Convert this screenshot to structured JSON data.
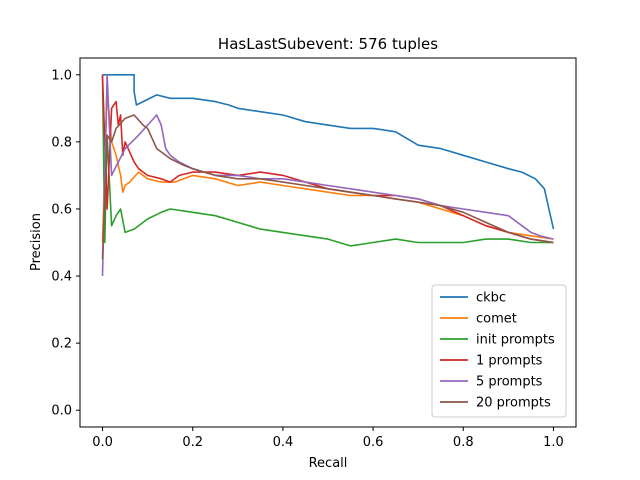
{
  "chart_data": {
    "type": "line",
    "title": "HasLastSubevent: 576 tuples",
    "xlabel": "Recall",
    "ylabel": "Precision",
    "xlim": [
      -0.05,
      1.05
    ],
    "ylim": [
      -0.05,
      1.05
    ],
    "xticks": [
      0.0,
      0.2,
      0.4,
      0.6,
      0.8,
      1.0
    ],
    "yticks": [
      0.0,
      0.2,
      0.4,
      0.6,
      0.8,
      1.0
    ],
    "xtick_labels": [
      "0.0",
      "0.2",
      "0.4",
      "0.6",
      "0.8",
      "1.0"
    ],
    "ytick_labels": [
      "0.0",
      "0.2",
      "0.4",
      "0.6",
      "0.8",
      "1.0"
    ],
    "grid": false,
    "legend_position": "lower right",
    "series": [
      {
        "name": "ckbc",
        "color": "#1f77b4",
        "x": [
          0.0,
          0.07,
          0.07,
          0.075,
          0.09,
          0.12,
          0.15,
          0.2,
          0.25,
          0.28,
          0.3,
          0.35,
          0.4,
          0.45,
          0.5,
          0.55,
          0.6,
          0.65,
          0.7,
          0.75,
          0.8,
          0.85,
          0.9,
          0.93,
          0.96,
          0.98,
          0.99,
          1.0
        ],
        "y": [
          1.0,
          1.0,
          0.95,
          0.91,
          0.92,
          0.94,
          0.93,
          0.93,
          0.92,
          0.91,
          0.9,
          0.89,
          0.88,
          0.86,
          0.85,
          0.84,
          0.84,
          0.83,
          0.79,
          0.78,
          0.76,
          0.74,
          0.72,
          0.71,
          0.69,
          0.66,
          0.6,
          0.54
        ]
      },
      {
        "name": "comet",
        "color": "#ff7f0e",
        "x": [
          0.0,
          0.01,
          0.02,
          0.03,
          0.04,
          0.045,
          0.05,
          0.06,
          0.08,
          0.1,
          0.13,
          0.16,
          0.2,
          0.25,
          0.3,
          0.35,
          0.4,
          0.45,
          0.5,
          0.55,
          0.6,
          0.65,
          0.7,
          0.75,
          0.8,
          0.85,
          0.9,
          0.95,
          1.0
        ],
        "y": [
          0.5,
          0.95,
          0.8,
          0.76,
          0.7,
          0.65,
          0.67,
          0.68,
          0.71,
          0.69,
          0.68,
          0.68,
          0.7,
          0.69,
          0.67,
          0.68,
          0.67,
          0.66,
          0.65,
          0.64,
          0.64,
          0.63,
          0.62,
          0.6,
          0.58,
          0.55,
          0.53,
          0.52,
          0.51
        ]
      },
      {
        "name": "init prompts",
        "color": "#2ca02c",
        "x": [
          0.0,
          0.005,
          0.01,
          0.02,
          0.03,
          0.04,
          0.05,
          0.07,
          0.1,
          0.13,
          0.15,
          0.2,
          0.25,
          0.3,
          0.35,
          0.4,
          0.45,
          0.5,
          0.55,
          0.6,
          0.65,
          0.7,
          0.75,
          0.8,
          0.85,
          0.9,
          0.95,
          1.0
        ],
        "y": [
          1.0,
          0.5,
          0.82,
          0.55,
          0.58,
          0.6,
          0.53,
          0.54,
          0.57,
          0.59,
          0.6,
          0.59,
          0.58,
          0.56,
          0.54,
          0.53,
          0.52,
          0.51,
          0.49,
          0.5,
          0.51,
          0.5,
          0.5,
          0.5,
          0.51,
          0.51,
          0.5,
          0.5
        ]
      },
      {
        "name": "1 prompts",
        "color": "#d62728",
        "x": [
          0.0,
          0.01,
          0.02,
          0.03,
          0.035,
          0.04,
          0.045,
          0.05,
          0.06,
          0.07,
          0.08,
          0.09,
          0.1,
          0.13,
          0.15,
          0.17,
          0.2,
          0.25,
          0.3,
          0.35,
          0.4,
          0.45,
          0.5,
          0.55,
          0.6,
          0.65,
          0.7,
          0.75,
          0.8,
          0.85,
          0.9,
          0.95,
          1.0
        ],
        "y": [
          1.0,
          0.6,
          0.9,
          0.92,
          0.85,
          0.88,
          0.76,
          0.8,
          0.77,
          0.74,
          0.72,
          0.71,
          0.7,
          0.69,
          0.68,
          0.7,
          0.71,
          0.71,
          0.7,
          0.71,
          0.7,
          0.68,
          0.66,
          0.65,
          0.64,
          0.64,
          0.63,
          0.61,
          0.58,
          0.55,
          0.53,
          0.51,
          0.5
        ]
      },
      {
        "name": "5 prompts",
        "color": "#9467bd",
        "x": [
          0.0,
          0.01,
          0.015,
          0.02,
          0.05,
          0.08,
          0.1,
          0.12,
          0.13,
          0.14,
          0.15,
          0.17,
          0.2,
          0.25,
          0.3,
          0.35,
          0.4,
          0.45,
          0.5,
          0.55,
          0.6,
          0.65,
          0.7,
          0.75,
          0.8,
          0.85,
          0.9,
          0.93,
          0.95,
          0.97,
          1.0
        ],
        "y": [
          0.4,
          1.0,
          0.85,
          0.7,
          0.78,
          0.82,
          0.85,
          0.88,
          0.85,
          0.78,
          0.76,
          0.74,
          0.72,
          0.7,
          0.7,
          0.69,
          0.69,
          0.68,
          0.67,
          0.66,
          0.65,
          0.64,
          0.63,
          0.61,
          0.6,
          0.59,
          0.58,
          0.55,
          0.53,
          0.52,
          0.51
        ]
      },
      {
        "name": "20 prompts",
        "color": "#8c564b",
        "x": [
          0.0,
          0.01,
          0.02,
          0.03,
          0.05,
          0.07,
          0.09,
          0.1,
          0.12,
          0.13,
          0.15,
          0.18,
          0.2,
          0.25,
          0.3,
          0.35,
          0.4,
          0.45,
          0.5,
          0.55,
          0.6,
          0.65,
          0.7,
          0.75,
          0.8,
          0.85,
          0.9,
          0.95,
          1.0
        ],
        "y": [
          0.45,
          0.82,
          0.8,
          0.84,
          0.87,
          0.88,
          0.85,
          0.84,
          0.78,
          0.77,
          0.75,
          0.73,
          0.72,
          0.7,
          0.69,
          0.69,
          0.68,
          0.67,
          0.66,
          0.65,
          0.64,
          0.63,
          0.62,
          0.61,
          0.59,
          0.56,
          0.53,
          0.51,
          0.5
        ]
      }
    ]
  }
}
